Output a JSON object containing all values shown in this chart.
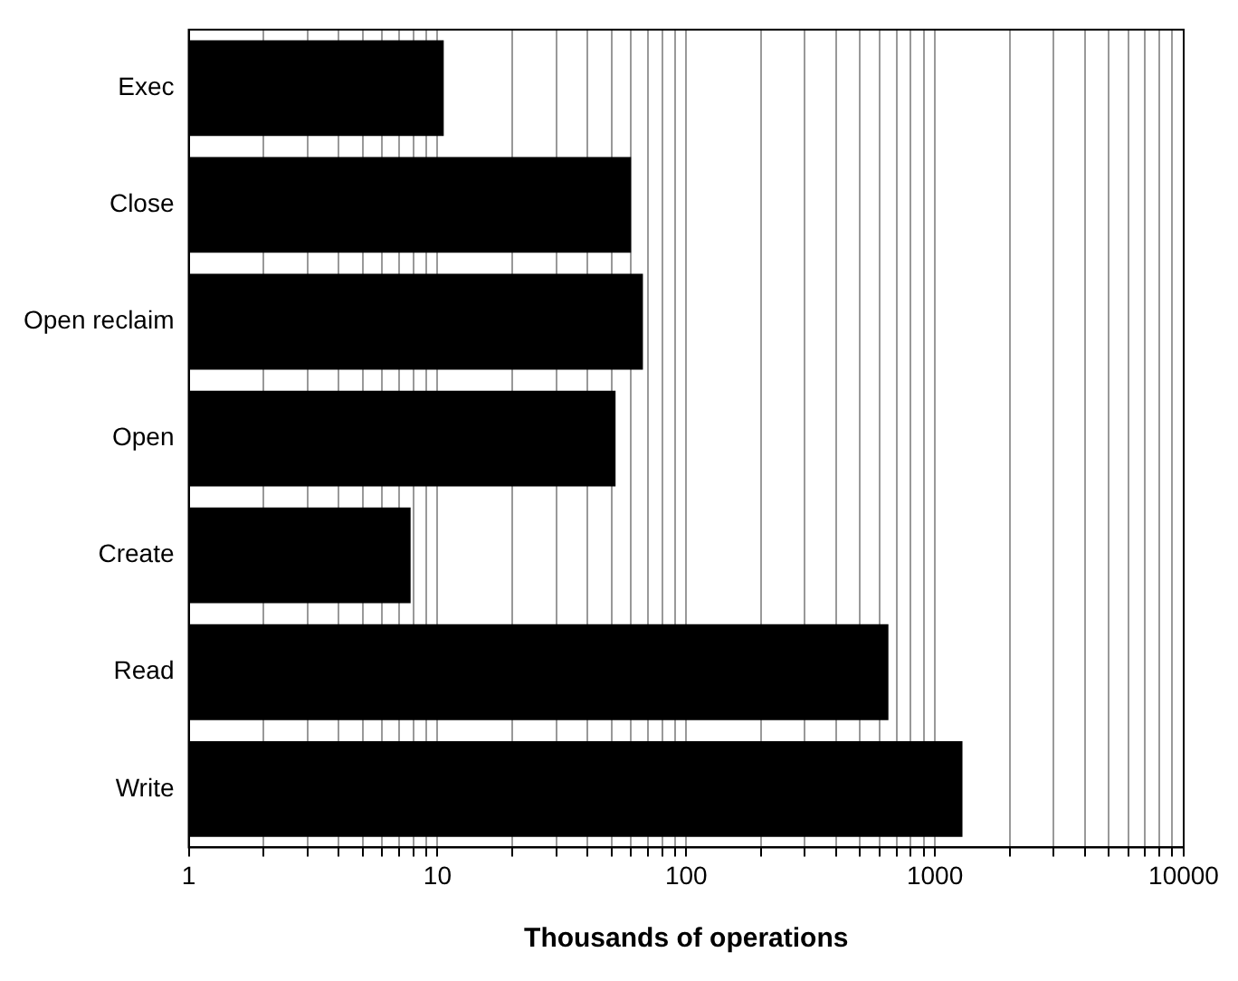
{
  "chart_data": {
    "type": "bar",
    "orientation": "horizontal",
    "xlabel": "Thousands of operations",
    "categories": [
      "Exec",
      "Close",
      "Open reclaim",
      "Open",
      "Create",
      "Read",
      "Write"
    ],
    "values": [
      10.6,
      60,
      67,
      52,
      7.8,
      650,
      1290
    ],
    "color": "#000000",
    "log": "x",
    "xlim": [
      1,
      10000
    ],
    "xticks": [
      1,
      {
        "value": 2,
        "label": null
      },
      {
        "value": 3,
        "label": null
      },
      {
        "value": 4,
        "label": null
      },
      {
        "value": 5,
        "label": null
      },
      {
        "value": 6,
        "label": null
      },
      {
        "value": 7,
        "label": null
      },
      {
        "value": 8,
        "label": null
      },
      {
        "value": 9,
        "label": null
      },
      10,
      {
        "value": 20,
        "label": null
      },
      {
        "value": 30,
        "label": null
      },
      {
        "value": 40,
        "label": null
      },
      {
        "value": 50,
        "label": null
      },
      {
        "value": 60,
        "label": null
      },
      {
        "value": 70,
        "label": null
      },
      {
        "value": 80,
        "label": null
      },
      {
        "value": 90,
        "label": null
      },
      100,
      {
        "value": 200,
        "label": null
      },
      {
        "value": 300,
        "label": null
      },
      {
        "value": 400,
        "label": null
      },
      {
        "value": 500,
        "label": null
      },
      {
        "value": 600,
        "label": null
      },
      {
        "value": 700,
        "label": null
      },
      {
        "value": 800,
        "label": null
      },
      {
        "value": 900,
        "label": null
      },
      1000,
      {
        "value": 2000,
        "label": null
      },
      {
        "value": 3000,
        "label": null
      },
      {
        "value": 4000,
        "label": null
      },
      {
        "value": 5000,
        "label": null
      },
      {
        "value": 6000,
        "label": null
      },
      {
        "value": 7000,
        "label": null
      },
      {
        "value": 8000,
        "label": null
      },
      {
        "value": 9000,
        "label": null
      },
      10000
    ],
    "grid": "x",
    "legend": false
  }
}
